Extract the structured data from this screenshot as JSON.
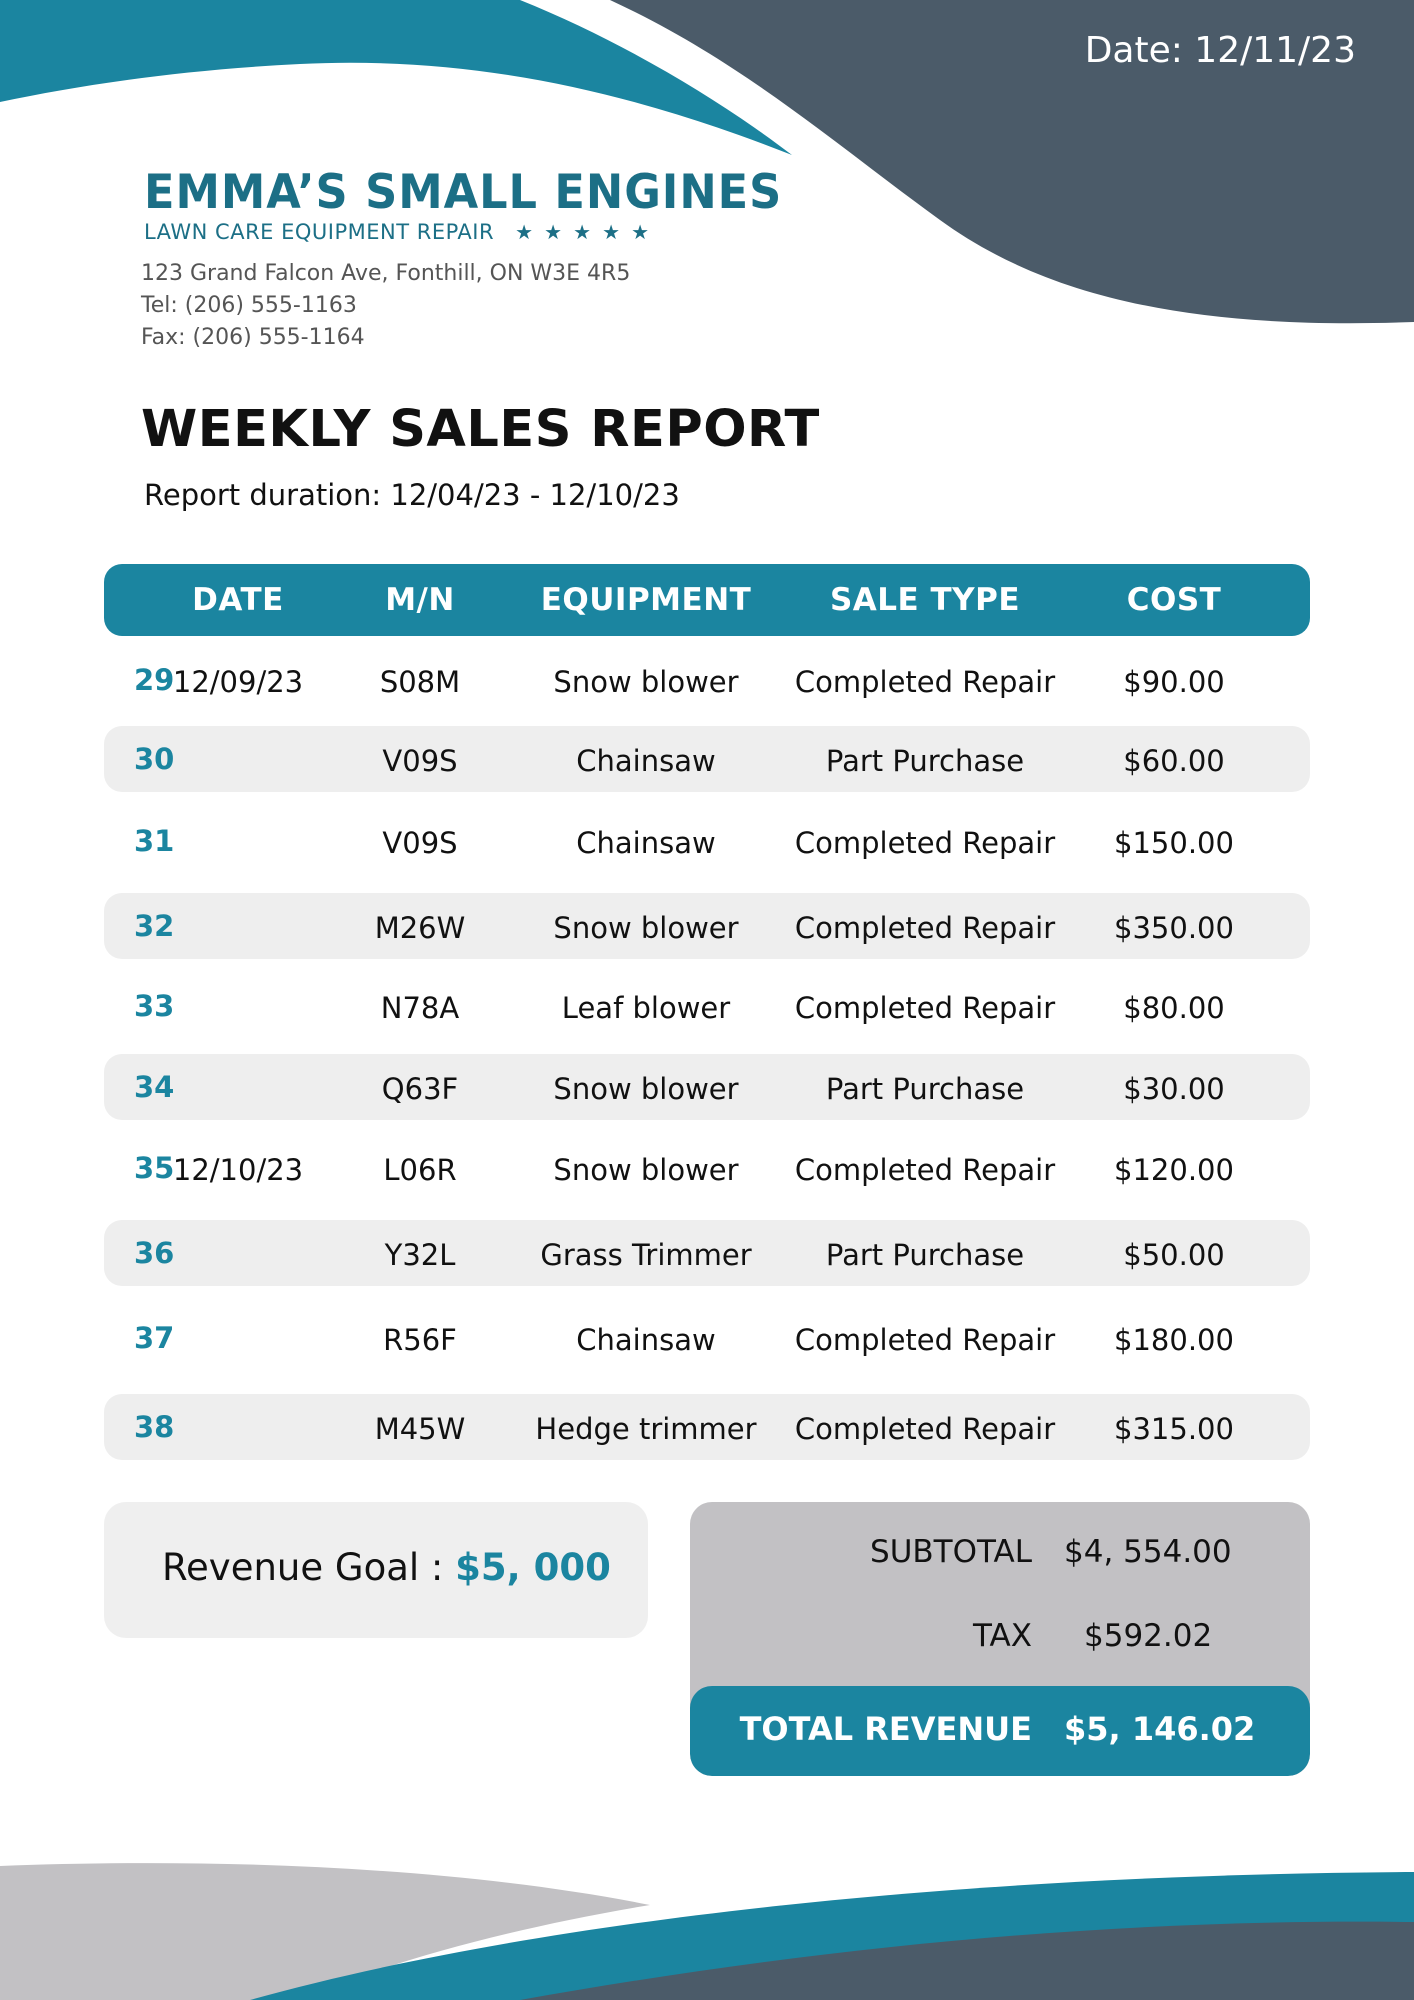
{
  "header": {
    "date": "Date: 12/11/23"
  },
  "company": {
    "logo_name": "EMMA’S SMALL ENGINES",
    "logo_tagline": "LAWN CARE EQUIPMENT REPAIR",
    "address": "123 Grand Falcon Ave, Fonthill, ON W3E 4R5",
    "tel": "Tel: (206) 555-1163",
    "fax": "Fax: (206) 555-1164"
  },
  "report": {
    "title": "WEEKLY SALES REPORT",
    "duration": "Report duration: 12/04/23 - 12/10/23"
  },
  "table": {
    "headers": [
      "DATE",
      "M/N",
      "EQUIPMENT",
      "SALE TYPE",
      "COST"
    ],
    "rows": [
      {
        "num": "29",
        "date": "12/09/23",
        "mn": "S08M",
        "equipment": "Snow blower",
        "sale_type": "Completed Repair",
        "cost": "$90.00"
      },
      {
        "num": "30",
        "date": "",
        "mn": "V09S",
        "equipment": "Chainsaw",
        "sale_type": "Part Purchase",
        "cost": "$60.00"
      },
      {
        "num": "31",
        "date": "",
        "mn": "V09S",
        "equipment": "Chainsaw",
        "sale_type": "Completed Repair",
        "cost": "$150.00"
      },
      {
        "num": "32",
        "date": "",
        "mn": "M26W",
        "equipment": "Snow blower",
        "sale_type": "Completed Repair",
        "cost": "$350.00"
      },
      {
        "num": "33",
        "date": "",
        "mn": "N78A",
        "equipment": "Leaf blower",
        "sale_type": "Completed Repair",
        "cost": "$80.00"
      },
      {
        "num": "34",
        "date": "",
        "mn": "Q63F",
        "equipment": "Snow blower",
        "sale_type": "Part Purchase",
        "cost": "$30.00"
      },
      {
        "num": "35",
        "date": "12/10/23",
        "mn": "L06R",
        "equipment": "Snow blower",
        "sale_type": "Completed Repair",
        "cost": "$120.00"
      },
      {
        "num": "36",
        "date": "",
        "mn": "Y32L",
        "equipment": "Grass Trimmer",
        "sale_type": "Part Purchase",
        "cost": "$50.00"
      },
      {
        "num": "37",
        "date": "",
        "mn": "R56F",
        "equipment": "Chainsaw",
        "sale_type": "Completed Repair",
        "cost": "$180.00"
      },
      {
        "num": "38",
        "date": "",
        "mn": "M45W",
        "equipment": "Hedge trimmer",
        "sale_type": "Completed Repair",
        "cost": "$315.00"
      }
    ]
  },
  "goal": {
    "label": "Revenue Goal : ",
    "value": "$5, 000"
  },
  "summary": {
    "subtotal_label": "SUBTOTAL",
    "subtotal_value": "$4, 554.00",
    "tax_label": "TAX",
    "tax_value": "$592.02",
    "total_label": "TOTAL REVENUE",
    "total_value": "$5, 146.02"
  },
  "colors": {
    "accent": "#1b85a0",
    "dark_slate": "#4b5b69",
    "light_gray": "#c2c1c4",
    "row_gray": "#eeeeee"
  }
}
